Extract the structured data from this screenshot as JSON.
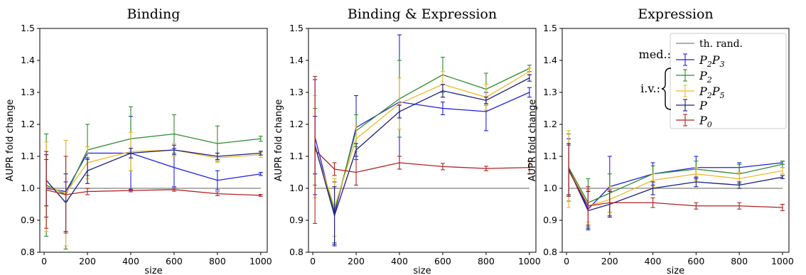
{
  "chart_data": [
    {
      "type": "line",
      "title": "Binding",
      "xlabel": "size",
      "ylabel": "AUPR fold change",
      "x": [
        10,
        100,
        200,
        400,
        600,
        800,
        1000
      ],
      "xticks": [
        "0",
        "200",
        "400",
        "600",
        "800",
        "1000"
      ],
      "yticks": [
        "0.8",
        "0.9",
        "1.0",
        "1.1",
        "1.2",
        "1.3",
        "1.4",
        "1.5"
      ],
      "ylim": [
        0.8,
        1.5
      ],
      "xlim": [
        -20,
        1030
      ],
      "reference_line": 1.0,
      "series": [
        {
          "color": "#1f1fe0",
          "values": [
            1.0,
            0.99,
            1.11,
            1.11,
            1.065,
            1.025,
            1.045
          ],
          "errors": [
            0.09,
            0.03,
            0.02,
            0.115,
            0.06,
            0.03,
            0.005
          ]
        },
        {
          "color": "#2e8b2e",
          "values": [
            1.01,
            0.98,
            1.12,
            1.155,
            1.17,
            1.14,
            1.155
          ],
          "errors": [
            0.16,
            0.17,
            0.08,
            0.1,
            0.06,
            0.055,
            0.008
          ]
        },
        {
          "color": "#f0b828",
          "values": [
            1.005,
            0.985,
            1.08,
            1.115,
            1.12,
            1.095,
            1.105
          ],
          "errors": [
            0.14,
            0.165,
            0.05,
            0.06,
            0.02,
            0.015,
            0.008
          ]
        },
        {
          "color": "#1c1c80",
          "values": [
            1.025,
            0.955,
            1.055,
            1.11,
            1.12,
            1.1,
            1.11
          ],
          "errors": [
            0.08,
            0.09,
            0.04,
            0.015,
            0.015,
            0.01,
            0.006
          ]
        },
        {
          "color": "#b22222",
          "values": [
            0.995,
            0.98,
            0.99,
            0.993,
            0.996,
            0.983,
            0.978
          ],
          "errors": [
            0.12,
            0.12,
            0.01,
            0.004,
            0.005,
            0.006,
            0.003
          ]
        }
      ]
    },
    {
      "type": "line",
      "title": "Binding & Expression",
      "xlabel": "size",
      "ylabel": "AUPR fold change",
      "x": [
        10,
        100,
        200,
        400,
        600,
        800,
        1000
      ],
      "xticks": [
        "0",
        "200",
        "400",
        "600",
        "800",
        "1000"
      ],
      "yticks": [
        "0.8",
        "0.9",
        "1.0",
        "1.1",
        "1.2",
        "1.3",
        "1.4",
        "1.5"
      ],
      "ylim": [
        0.8,
        1.5
      ],
      "xlim": [
        -20,
        1030
      ],
      "reference_line": 1.0,
      "series": [
        {
          "color": "#1f1fe0",
          "values": [
            1.16,
            0.92,
            1.19,
            1.27,
            1.25,
            1.24,
            1.3
          ],
          "errors": [
            0.18,
            0.1,
            0.1,
            0.21,
            0.02,
            0.06,
            0.015
          ]
        },
        {
          "color": "#2e8b2e",
          "values": [
            1.13,
            0.93,
            1.18,
            1.28,
            1.355,
            1.31,
            1.375
          ],
          "errors": [
            0.12,
            0.1,
            0.05,
            0.12,
            0.055,
            0.05,
            0.01
          ]
        },
        {
          "color": "#f0b828",
          "values": [
            1.13,
            0.94,
            1.155,
            1.265,
            1.325,
            1.285,
            1.365
          ],
          "errors": [
            0.16,
            0.09,
            0.04,
            0.08,
            0.04,
            0.04,
            0.01
          ]
        },
        {
          "color": "#1c1c80",
          "values": [
            1.135,
            0.915,
            1.12,
            1.24,
            1.305,
            1.275,
            1.345
          ],
          "errors": [
            0.09,
            0.09,
            0.02,
            0.02,
            0.02,
            0.01,
            0.01
          ]
        },
        {
          "color": "#b22222",
          "values": [
            1.12,
            1.06,
            1.05,
            1.08,
            1.068,
            1.062,
            1.065
          ],
          "errors": [
            0.23,
            0.02,
            0.04,
            0.02,
            0.01,
            0.007,
            0.02
          ]
        }
      ]
    },
    {
      "type": "line",
      "title": "Expression",
      "xlabel": "size",
      "ylabel": "AUPR fold change",
      "x": [
        10,
        100,
        200,
        400,
        600,
        800,
        1000
      ],
      "xticks": [
        "0",
        "200",
        "400",
        "600",
        "800",
        "1000"
      ],
      "yticks": [
        "0.8",
        "0.9",
        "1.0",
        "1.1",
        "1.2",
        "1.3",
        "1.4",
        "1.5"
      ],
      "ylim": [
        0.8,
        1.5
      ],
      "xlim": [
        -20,
        1030
      ],
      "reference_line": 1.0,
      "series": [
        {
          "color": "#1f1fe0",
          "values": [
            1.065,
            0.935,
            1.005,
            1.045,
            1.065,
            1.065,
            1.08
          ],
          "errors": [
            0.09,
            0.06,
            0.095,
            0.035,
            0.035,
            0.015,
            0.005
          ]
        },
        {
          "color": "#2e8b2e",
          "values": [
            1.065,
            0.955,
            0.985,
            1.045,
            1.06,
            1.045,
            1.075
          ],
          "errors": [
            0.105,
            0.075,
            0.06,
            0.025,
            0.025,
            0.03,
            0.01
          ]
        },
        {
          "color": "#f0b828",
          "values": [
            1.06,
            0.945,
            0.965,
            1.025,
            1.045,
            1.03,
            1.055
          ],
          "errors": [
            0.12,
            0.05,
            0.04,
            0.02,
            0.02,
            0.02,
            0.01
          ]
        },
        {
          "color": "#1c1c80",
          "values": [
            1.06,
            0.93,
            0.95,
            1.0,
            1.02,
            1.01,
            1.035
          ],
          "errors": [
            0.08,
            0.06,
            0.04,
            0.02,
            0.015,
            0.01,
            0.005
          ]
        },
        {
          "color": "#b22222",
          "values": [
            1.055,
            0.945,
            0.955,
            0.955,
            0.945,
            0.945,
            0.94
          ],
          "errors": [
            0.08,
            0.06,
            0.04,
            0.015,
            0.01,
            0.01,
            0.01
          ]
        }
      ]
    }
  ],
  "legend": {
    "placement": "top-right of third panel",
    "reference_label": "th. rand.",
    "reference_color": "#808080",
    "group_med_label": "med.:",
    "group_iv_label": "i.v.:",
    "entries": [
      {
        "label_base": "P",
        "sub1": "2",
        "mid": "P",
        "sub2": "3",
        "color": "#1f1fe0",
        "group": "med"
      },
      {
        "label_base": "P",
        "sub1": "2",
        "mid": "",
        "sub2": "",
        "color": "#2e8b2e",
        "group": "iv"
      },
      {
        "label_base": "P",
        "sub1": "2",
        "mid": "P",
        "sub2": "5",
        "color": "#f0b828",
        "group": "iv"
      },
      {
        "label_base": "P",
        "sub1": "",
        "mid": "",
        "sub2": "",
        "color": "#1c1c80",
        "group": "iv"
      },
      {
        "label_base": "P",
        "sub1": "0",
        "mid": "",
        "sub2": "",
        "color": "#b22222",
        "group": "none"
      }
    ]
  }
}
